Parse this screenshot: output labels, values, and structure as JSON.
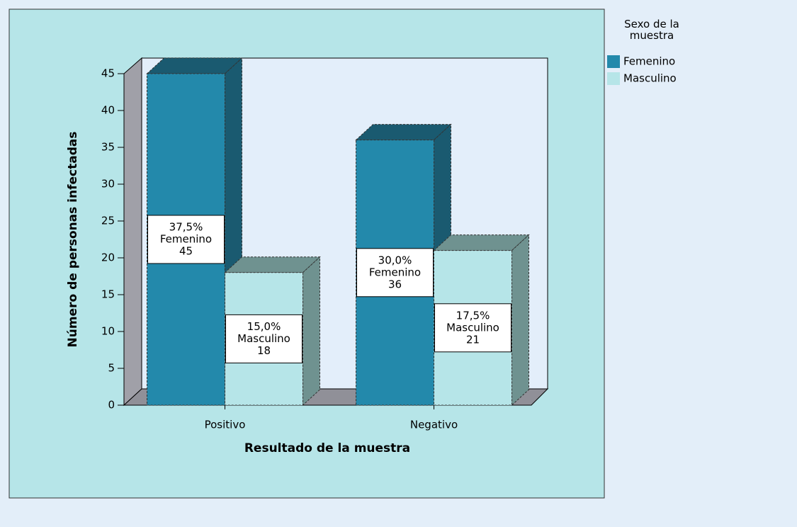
{
  "chart_data": {
    "type": "bar3d",
    "categories": [
      "Positivo",
      "Negativo"
    ],
    "x_label": "Resultado de la muestra",
    "y_label": "Número de personas infectadas",
    "legend_title": "Sexo de la muestra",
    "legend": "right",
    "ylim": [
      0,
      45
    ],
    "yticks": [
      0,
      5,
      10,
      15,
      20,
      25,
      30,
      35,
      40,
      45
    ],
    "series": [
      {
        "name": "Femenino",
        "color": "#2389ab",
        "dark": "#1a5a70",
        "values": [
          45,
          36
        ],
        "percentages": [
          37.5,
          30.0
        ],
        "percent_labels": [
          "37,5%",
          "30,0%"
        ]
      },
      {
        "name": "Masculino",
        "color": "#b6e5e8",
        "dark": "#6f9290",
        "values": [
          18,
          21
        ],
        "percentages": [
          15.0,
          17.5
        ],
        "percent_labels": [
          "15,0%",
          "17,5%"
        ]
      }
    ]
  }
}
